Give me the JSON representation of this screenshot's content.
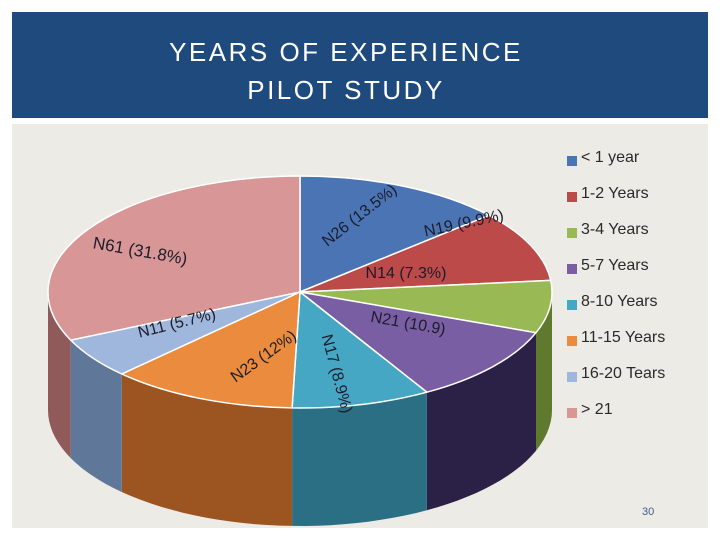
{
  "header": {
    "title_line1": "YEARS OF EXPERIENCE",
    "title_line2": "PILOT STUDY"
  },
  "page_number": "30",
  "chart_data": {
    "type": "pie",
    "title": "YEARS OF EXPERIENCE PILOT STUDY",
    "categories": [
      "< 1 year",
      "1-2 Years",
      "3-4 Years",
      "5-7 Years",
      "8-10 Years",
      "11-15 Years",
      "16-20 Tears",
      "> 21"
    ],
    "values": [
      13.5,
      9.9,
      7.3,
      10.9,
      8.9,
      12,
      5.7,
      31.8
    ],
    "counts": [
      26,
      19,
      14,
      21,
      17,
      23,
      11,
      61
    ],
    "data_labels": [
      "N26 (13.5%)",
      "N19 (9.9%)",
      "N14 (7.3%)",
      "N21 (10.9)",
      "N17 (8.9%)",
      "N23 (12%)",
      "N11 (5.7%)",
      "N61 (31.8%)"
    ],
    "colors": [
      "#4a74b4",
      "#bb4a48",
      "#98b954",
      "#7a5ea3",
      "#46a7c4",
      "#eb8b3d",
      "#9fb7dd",
      "#d89696"
    ],
    "side_colors": [
      "#2c4a77",
      "#7b2c2b",
      "#5f7a2e",
      "#2b2146",
      "#2a6f83",
      "#9c5520",
      "#5f7799",
      "#905a5a"
    ],
    "legend_position": "right"
  }
}
